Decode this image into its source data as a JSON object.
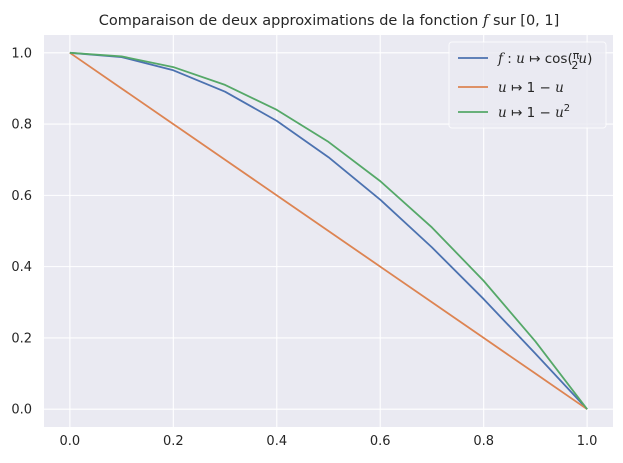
{
  "chart_data": {
    "type": "line",
    "title": "Comparaison de deux approximations de la fonction f sur [0, 1]",
    "title_parts": {
      "prefix": "Comparaison de deux approximations de la fonction ",
      "var": "f",
      "middle": " sur ",
      "interval": "[0, 1]"
    },
    "xlabel": "",
    "ylabel": "",
    "xlim": [
      -0.05,
      1.05
    ],
    "ylim": [
      -0.05,
      1.05
    ],
    "x_ticks": [
      0.0,
      0.2,
      0.4,
      0.6,
      0.8,
      1.0
    ],
    "x_tick_labels": [
      "0.0",
      "0.2",
      "0.4",
      "0.6",
      "0.8",
      "1.0"
    ],
    "y_ticks": [
      0.0,
      0.2,
      0.4,
      0.6,
      0.8,
      1.0
    ],
    "y_tick_labels": [
      "0.0",
      "0.2",
      "0.4",
      "0.6",
      "0.8",
      "1.0"
    ],
    "grid": true,
    "legend_position": "top-right",
    "background_color": "#eaeaf2",
    "grid_color": "#ffffff",
    "x": [
      0.0,
      0.1,
      0.2,
      0.3,
      0.4,
      0.5,
      0.6,
      0.7,
      0.8,
      0.9,
      1.0
    ],
    "series": [
      {
        "name": "f : u ↦ cos(π/2 u)",
        "color": "#4c72b0",
        "values": [
          1.0,
          0.988,
          0.951,
          0.891,
          0.809,
          0.707,
          0.588,
          0.454,
          0.309,
          0.156,
          0.0
        ]
      },
      {
        "name": "u ↦ 1 − u",
        "color": "#dd8452",
        "values": [
          1.0,
          0.9,
          0.8,
          0.7,
          0.6,
          0.5,
          0.4,
          0.3,
          0.2,
          0.1,
          0.0
        ]
      },
      {
        "name": "u ↦ 1 − u²",
        "color": "#55a868",
        "values": [
          1.0,
          0.99,
          0.96,
          0.91,
          0.84,
          0.75,
          0.64,
          0.51,
          0.36,
          0.19,
          0.0
        ]
      }
    ]
  }
}
